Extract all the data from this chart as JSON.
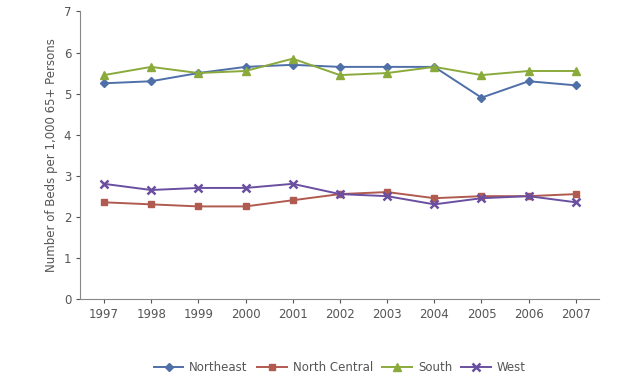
{
  "years": [
    1997,
    1998,
    1999,
    2000,
    2001,
    2002,
    2003,
    2004,
    2005,
    2006,
    2007
  ],
  "northeast": [
    5.25,
    5.3,
    5.5,
    5.65,
    5.7,
    5.65,
    5.65,
    5.65,
    4.9,
    5.3,
    5.2
  ],
  "north_central": [
    2.35,
    2.3,
    2.25,
    2.25,
    2.4,
    2.55,
    2.6,
    2.45,
    2.5,
    2.5,
    2.55
  ],
  "south": [
    5.45,
    5.65,
    5.5,
    5.55,
    5.85,
    5.45,
    5.5,
    5.65,
    5.45,
    5.55,
    5.55
  ],
  "west": [
    2.8,
    2.65,
    2.7,
    2.7,
    2.8,
    2.55,
    2.5,
    2.3,
    2.45,
    2.5,
    2.35
  ],
  "northeast_color": "#4f6fa8",
  "north_central_color": "#b05a50",
  "south_color": "#8aaa3c",
  "west_color": "#6a4fa0",
  "ylabel": "Number of Beds per 1,000 65+ Persons",
  "ylim": [
    0,
    7
  ],
  "yticks": [
    0,
    1,
    2,
    3,
    4,
    5,
    6,
    7
  ],
  "legend_labels": [
    "Northeast",
    "North Central",
    "South",
    "West"
  ],
  "background_color": "#ffffff",
  "tick_color": "#555555",
  "spine_color": "#888888"
}
